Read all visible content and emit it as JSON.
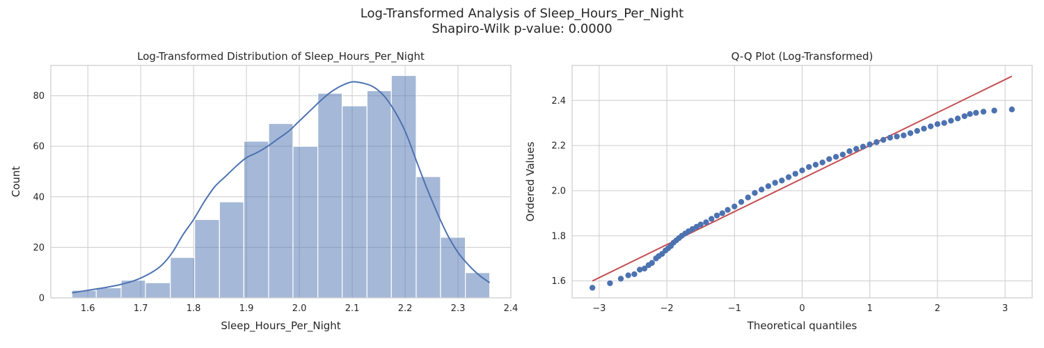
{
  "suptitle": {
    "line1": "Log-Transformed Analysis of Sleep_Hours_Per_Night",
    "line2": "Shapiro-Wilk p-value: 0.0000"
  },
  "chart_data": [
    {
      "type": "bar",
      "subtype": "histogram",
      "title": "Log-Transformed Distribution of Sleep_Hours_Per_Night",
      "xlabel": "Sleep_Hours_Per_Night",
      "ylabel": "Count",
      "xlim": [
        1.53,
        2.4
      ],
      "ylim": [
        0,
        92
      ],
      "xticks": [
        "1.6",
        "1.7",
        "1.8",
        "1.9",
        "2.0",
        "2.1",
        "2.2",
        "2.3",
        "2.4"
      ],
      "yticks": [
        "0",
        "20",
        "40",
        "60",
        "80"
      ],
      "grid": true,
      "bar_color": "#4c72b0",
      "bins": [
        {
          "x0": 1.57,
          "x1": 1.616,
          "count": 3
        },
        {
          "x0": 1.616,
          "x1": 1.663,
          "count": 4
        },
        {
          "x0": 1.663,
          "x1": 1.709,
          "count": 7
        },
        {
          "x0": 1.709,
          "x1": 1.756,
          "count": 6
        },
        {
          "x0": 1.756,
          "x1": 1.802,
          "count": 16
        },
        {
          "x0": 1.802,
          "x1": 1.849,
          "count": 31
        },
        {
          "x0": 1.849,
          "x1": 1.895,
          "count": 38
        },
        {
          "x0": 1.895,
          "x1": 1.942,
          "count": 62
        },
        {
          "x0": 1.942,
          "x1": 1.988,
          "count": 69
        },
        {
          "x0": 1.988,
          "x1": 2.035,
          "count": 60
        },
        {
          "x0": 2.035,
          "x1": 2.081,
          "count": 81
        },
        {
          "x0": 2.081,
          "x1": 2.128,
          "count": 76
        },
        {
          "x0": 2.128,
          "x1": 2.174,
          "count": 82
        },
        {
          "x0": 2.174,
          "x1": 2.221,
          "count": 88
        },
        {
          "x0": 2.221,
          "x1": 2.267,
          "count": 48
        },
        {
          "x0": 2.267,
          "x1": 2.314,
          "count": 24
        },
        {
          "x0": 2.314,
          "x1": 2.36,
          "count": 10
        }
      ],
      "kde": {
        "x": [
          1.57,
          1.6,
          1.63,
          1.66,
          1.69,
          1.72,
          1.74,
          1.76,
          1.78,
          1.8,
          1.82,
          1.84,
          1.86,
          1.88,
          1.9,
          1.92,
          1.94,
          1.96,
          1.98,
          2.0,
          2.02,
          2.04,
          2.06,
          2.08,
          2.1,
          2.12,
          2.14,
          2.16,
          2.18,
          2.2,
          2.22,
          2.24,
          2.26,
          2.28,
          2.3,
          2.32,
          2.34,
          2.36
        ],
        "y": [
          2,
          3,
          4,
          5.2,
          7,
          10,
          13,
          18,
          25,
          31,
          38,
          44,
          48,
          52,
          55.5,
          57.5,
          60,
          63,
          66,
          70,
          74,
          78,
          81.5,
          84,
          85.5,
          85,
          83.5,
          80,
          74,
          66,
          55,
          44,
          34,
          25,
          18,
          13,
          9,
          6
        ]
      }
    },
    {
      "type": "scatter",
      "subtype": "qq-plot",
      "title": "Q-Q Plot (Log-Transformed)",
      "xlabel": "Theoretical quantiles",
      "ylabel": "Ordered Values",
      "xlim": [
        -3.4,
        3.4
      ],
      "ylim": [
        1.525,
        2.555
      ],
      "xticks": [
        -3,
        -2,
        -1,
        0,
        1,
        2,
        3
      ],
      "yticks": [
        "1.6",
        "1.8",
        "2.0",
        "2.2",
        "2.4"
      ],
      "grid": true,
      "point_color": "#4c72b0",
      "line_color": "#c44e52",
      "fit_line": {
        "x": [
          -3.1,
          3.1
        ],
        "y": [
          1.6,
          2.507
        ]
      },
      "points": {
        "x": [
          -3.1,
          -2.84,
          -2.68,
          -2.57,
          -2.48,
          -2.4,
          -2.33,
          -2.27,
          -2.22,
          -2.16,
          -2.12,
          -2.07,
          -2.02,
          -1.98,
          -1.94,
          -1.9,
          -1.86,
          -1.82,
          -1.78,
          -1.73,
          -1.68,
          -1.62,
          -1.56,
          -1.5,
          -1.42,
          -1.34,
          -1.26,
          -1.18,
          -1.1,
          -1.0,
          -0.9,
          -0.8,
          -0.7,
          -0.6,
          -0.5,
          -0.4,
          -0.3,
          -0.2,
          -0.1,
          0.0,
          0.1,
          0.2,
          0.3,
          0.4,
          0.5,
          0.6,
          0.7,
          0.8,
          0.9,
          1.0,
          1.1,
          1.2,
          1.3,
          1.4,
          1.5,
          1.6,
          1.7,
          1.8,
          1.9,
          2.0,
          2.1,
          2.2,
          2.3,
          2.4,
          2.48,
          2.57,
          2.68,
          2.84,
          3.1
        ],
        "y": [
          1.57,
          1.59,
          1.61,
          1.625,
          1.63,
          1.65,
          1.655,
          1.67,
          1.68,
          1.7,
          1.71,
          1.72,
          1.735,
          1.745,
          1.755,
          1.77,
          1.78,
          1.79,
          1.8,
          1.81,
          1.82,
          1.83,
          1.84,
          1.85,
          1.86,
          1.875,
          1.89,
          1.9,
          1.915,
          1.93,
          1.95,
          1.97,
          1.99,
          2.005,
          2.02,
          2.035,
          2.045,
          2.06,
          2.075,
          2.09,
          2.105,
          2.115,
          2.125,
          2.14,
          2.15,
          2.16,
          2.175,
          2.185,
          2.195,
          2.205,
          2.215,
          2.225,
          2.235,
          2.24,
          2.245,
          2.255,
          2.265,
          2.275,
          2.285,
          2.295,
          2.3,
          2.31,
          2.32,
          2.33,
          2.34,
          2.345,
          2.35,
          2.355,
          2.36
        ]
      }
    }
  ]
}
